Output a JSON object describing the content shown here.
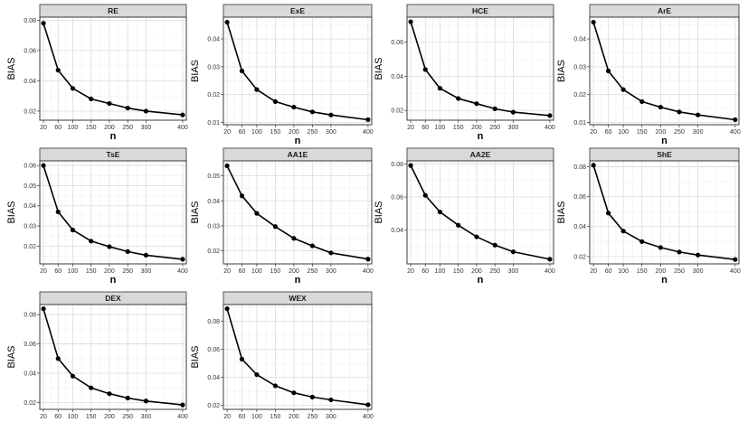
{
  "chart_data": [
    {
      "type": "line",
      "title": "RE",
      "xlabel": "n",
      "ylabel": "BIAS",
      "x": [
        20,
        60,
        100,
        150,
        200,
        250,
        300,
        400
      ],
      "values": [
        0.078,
        0.047,
        0.035,
        0.028,
        0.025,
        0.022,
        0.02,
        0.0175
      ],
      "xlim": [
        10,
        410
      ],
      "ylim": [
        0.014,
        0.082
      ],
      "xticks": [
        20,
        60,
        100,
        150,
        200,
        250,
        300,
        400
      ],
      "yticks": [
        0.02,
        0.04,
        0.06,
        0.08
      ],
      "ytick_labels": [
        "0.02",
        "0.04",
        "0.06",
        "0.08"
      ]
    },
    {
      "type": "line",
      "title": "ExE",
      "xlabel": "n",
      "ylabel": "BIAS",
      "x": [
        20,
        60,
        100,
        150,
        200,
        250,
        300,
        400
      ],
      "values": [
        0.046,
        0.0285,
        0.0218,
        0.0175,
        0.0155,
        0.0138,
        0.0127,
        0.011
      ],
      "xlim": [
        10,
        410
      ],
      "ylim": [
        0.0092,
        0.0478
      ],
      "xticks": [
        20,
        60,
        100,
        150,
        200,
        250,
        300,
        400
      ],
      "yticks": [
        0.01,
        0.02,
        0.03,
        0.04
      ],
      "ytick_labels": [
        "0.01",
        "0.02",
        "0.03",
        "0.04"
      ]
    },
    {
      "type": "line",
      "title": "HCE",
      "xlabel": "n",
      "ylabel": "BIAS",
      "x": [
        20,
        60,
        100,
        150,
        200,
        250,
        300,
        400
      ],
      "values": [
        0.072,
        0.044,
        0.033,
        0.027,
        0.024,
        0.021,
        0.019,
        0.017
      ],
      "xlim": [
        10,
        410
      ],
      "ylim": [
        0.0143,
        0.0747
      ],
      "xticks": [
        20,
        60,
        100,
        150,
        200,
        250,
        300,
        400
      ],
      "yticks": [
        0.02,
        0.04,
        0.06
      ],
      "ytick_labels": [
        "0.02",
        "0.04",
        "0.06"
      ]
    },
    {
      "type": "line",
      "title": "ArE",
      "xlabel": "n",
      "ylabel": "BIAS",
      "x": [
        20,
        60,
        100,
        150,
        200,
        250,
        300,
        400
      ],
      "values": [
        0.046,
        0.0285,
        0.0218,
        0.0175,
        0.0155,
        0.0138,
        0.0127,
        0.011
      ],
      "xlim": [
        10,
        410
      ],
      "ylim": [
        0.0092,
        0.0478
      ],
      "xticks": [
        20,
        60,
        100,
        150,
        200,
        250,
        300,
        400
      ],
      "yticks": [
        0.01,
        0.02,
        0.03,
        0.04
      ],
      "ytick_labels": [
        "0.01",
        "0.02",
        "0.03",
        "0.04"
      ]
    },
    {
      "type": "line",
      "title": "TsE",
      "xlabel": "n",
      "ylabel": "BIAS",
      "x": [
        20,
        60,
        100,
        150,
        200,
        250,
        300,
        400
      ],
      "values": [
        0.06,
        0.037,
        0.028,
        0.0225,
        0.0197,
        0.0173,
        0.0155,
        0.0135
      ],
      "xlim": [
        10,
        410
      ],
      "ylim": [
        0.0112,
        0.0623
      ],
      "xticks": [
        20,
        60,
        100,
        150,
        200,
        250,
        300,
        400
      ],
      "yticks": [
        0.02,
        0.03,
        0.04,
        0.05,
        0.06
      ],
      "ytick_labels": [
        "0.02",
        "0.03",
        "0.04",
        "0.05",
        "0.06"
      ]
    },
    {
      "type": "line",
      "title": "AA1E",
      "xlabel": "n",
      "ylabel": "BIAS",
      "x": [
        20,
        60,
        100,
        150,
        200,
        250,
        300,
        400
      ],
      "values": [
        0.054,
        0.042,
        0.035,
        0.0297,
        0.025,
        0.022,
        0.0192,
        0.0167
      ],
      "xlim": [
        10,
        410
      ],
      "ylim": [
        0.0148,
        0.056
      ],
      "xticks": [
        20,
        60,
        100,
        150,
        200,
        250,
        300,
        400
      ],
      "yticks": [
        0.02,
        0.03,
        0.04,
        0.05
      ],
      "ytick_labels": [
        "0.02",
        "0.03",
        "0.04",
        "0.05"
      ]
    },
    {
      "type": "line",
      "title": "AA2E",
      "xlabel": "n",
      "ylabel": "BIAS",
      "x": [
        20,
        60,
        100,
        150,
        200,
        250,
        300,
        400
      ],
      "values": [
        0.079,
        0.061,
        0.051,
        0.043,
        0.036,
        0.031,
        0.027,
        0.0225
      ],
      "xlim": [
        10,
        410
      ],
      "ylim": [
        0.0197,
        0.0818
      ],
      "xticks": [
        20,
        60,
        100,
        150,
        200,
        250,
        300,
        400
      ],
      "yticks": [
        0.04,
        0.06,
        0.08
      ],
      "ytick_labels": [
        "0.04",
        "0.06",
        "0.08"
      ]
    },
    {
      "type": "line",
      "title": "ShE",
      "xlabel": "n",
      "ylabel": "BIAS",
      "x": [
        20,
        60,
        100,
        150,
        200,
        250,
        300,
        400
      ],
      "values": [
        0.081,
        0.049,
        0.037,
        0.03,
        0.026,
        0.023,
        0.021,
        0.018
      ],
      "xlim": [
        10,
        410
      ],
      "ylim": [
        0.0151,
        0.0839
      ],
      "xticks": [
        20,
        60,
        100,
        150,
        200,
        250,
        300,
        400
      ],
      "yticks": [
        0.02,
        0.04,
        0.06,
        0.08
      ],
      "ytick_labels": [
        "0.02",
        "0.04",
        "0.06",
        "0.08"
      ]
    },
    {
      "type": "line",
      "title": "DEX",
      "xlabel": "n",
      "ylabel": "BIAS",
      "x": [
        20,
        60,
        100,
        150,
        200,
        250,
        300,
        400
      ],
      "values": [
        0.084,
        0.05,
        0.038,
        0.03,
        0.026,
        0.023,
        0.021,
        0.0183
      ],
      "xlim": [
        10,
        410
      ],
      "ylim": [
        0.0153,
        0.0869
      ],
      "xticks": [
        20,
        60,
        100,
        150,
        200,
        250,
        300,
        400
      ],
      "yticks": [
        0.02,
        0.04,
        0.06,
        0.08
      ],
      "ytick_labels": [
        "0.02",
        "0.04",
        "0.06",
        "0.08"
      ]
    },
    {
      "type": "line",
      "title": "WEX",
      "xlabel": "n",
      "ylabel": "BIAS",
      "x": [
        20,
        60,
        100,
        150,
        200,
        250,
        300,
        400
      ],
      "values": [
        0.089,
        0.053,
        0.042,
        0.034,
        0.029,
        0.026,
        0.024,
        0.0205
      ],
      "xlim": [
        10,
        410
      ],
      "ylim": [
        0.0172,
        0.092
      ],
      "xticks": [
        20,
        60,
        100,
        150,
        200,
        250,
        300,
        400
      ],
      "yticks": [
        0.02,
        0.04,
        0.06,
        0.08
      ],
      "ytick_labels": [
        "0.02",
        "0.04",
        "0.06",
        "0.08"
      ]
    }
  ]
}
